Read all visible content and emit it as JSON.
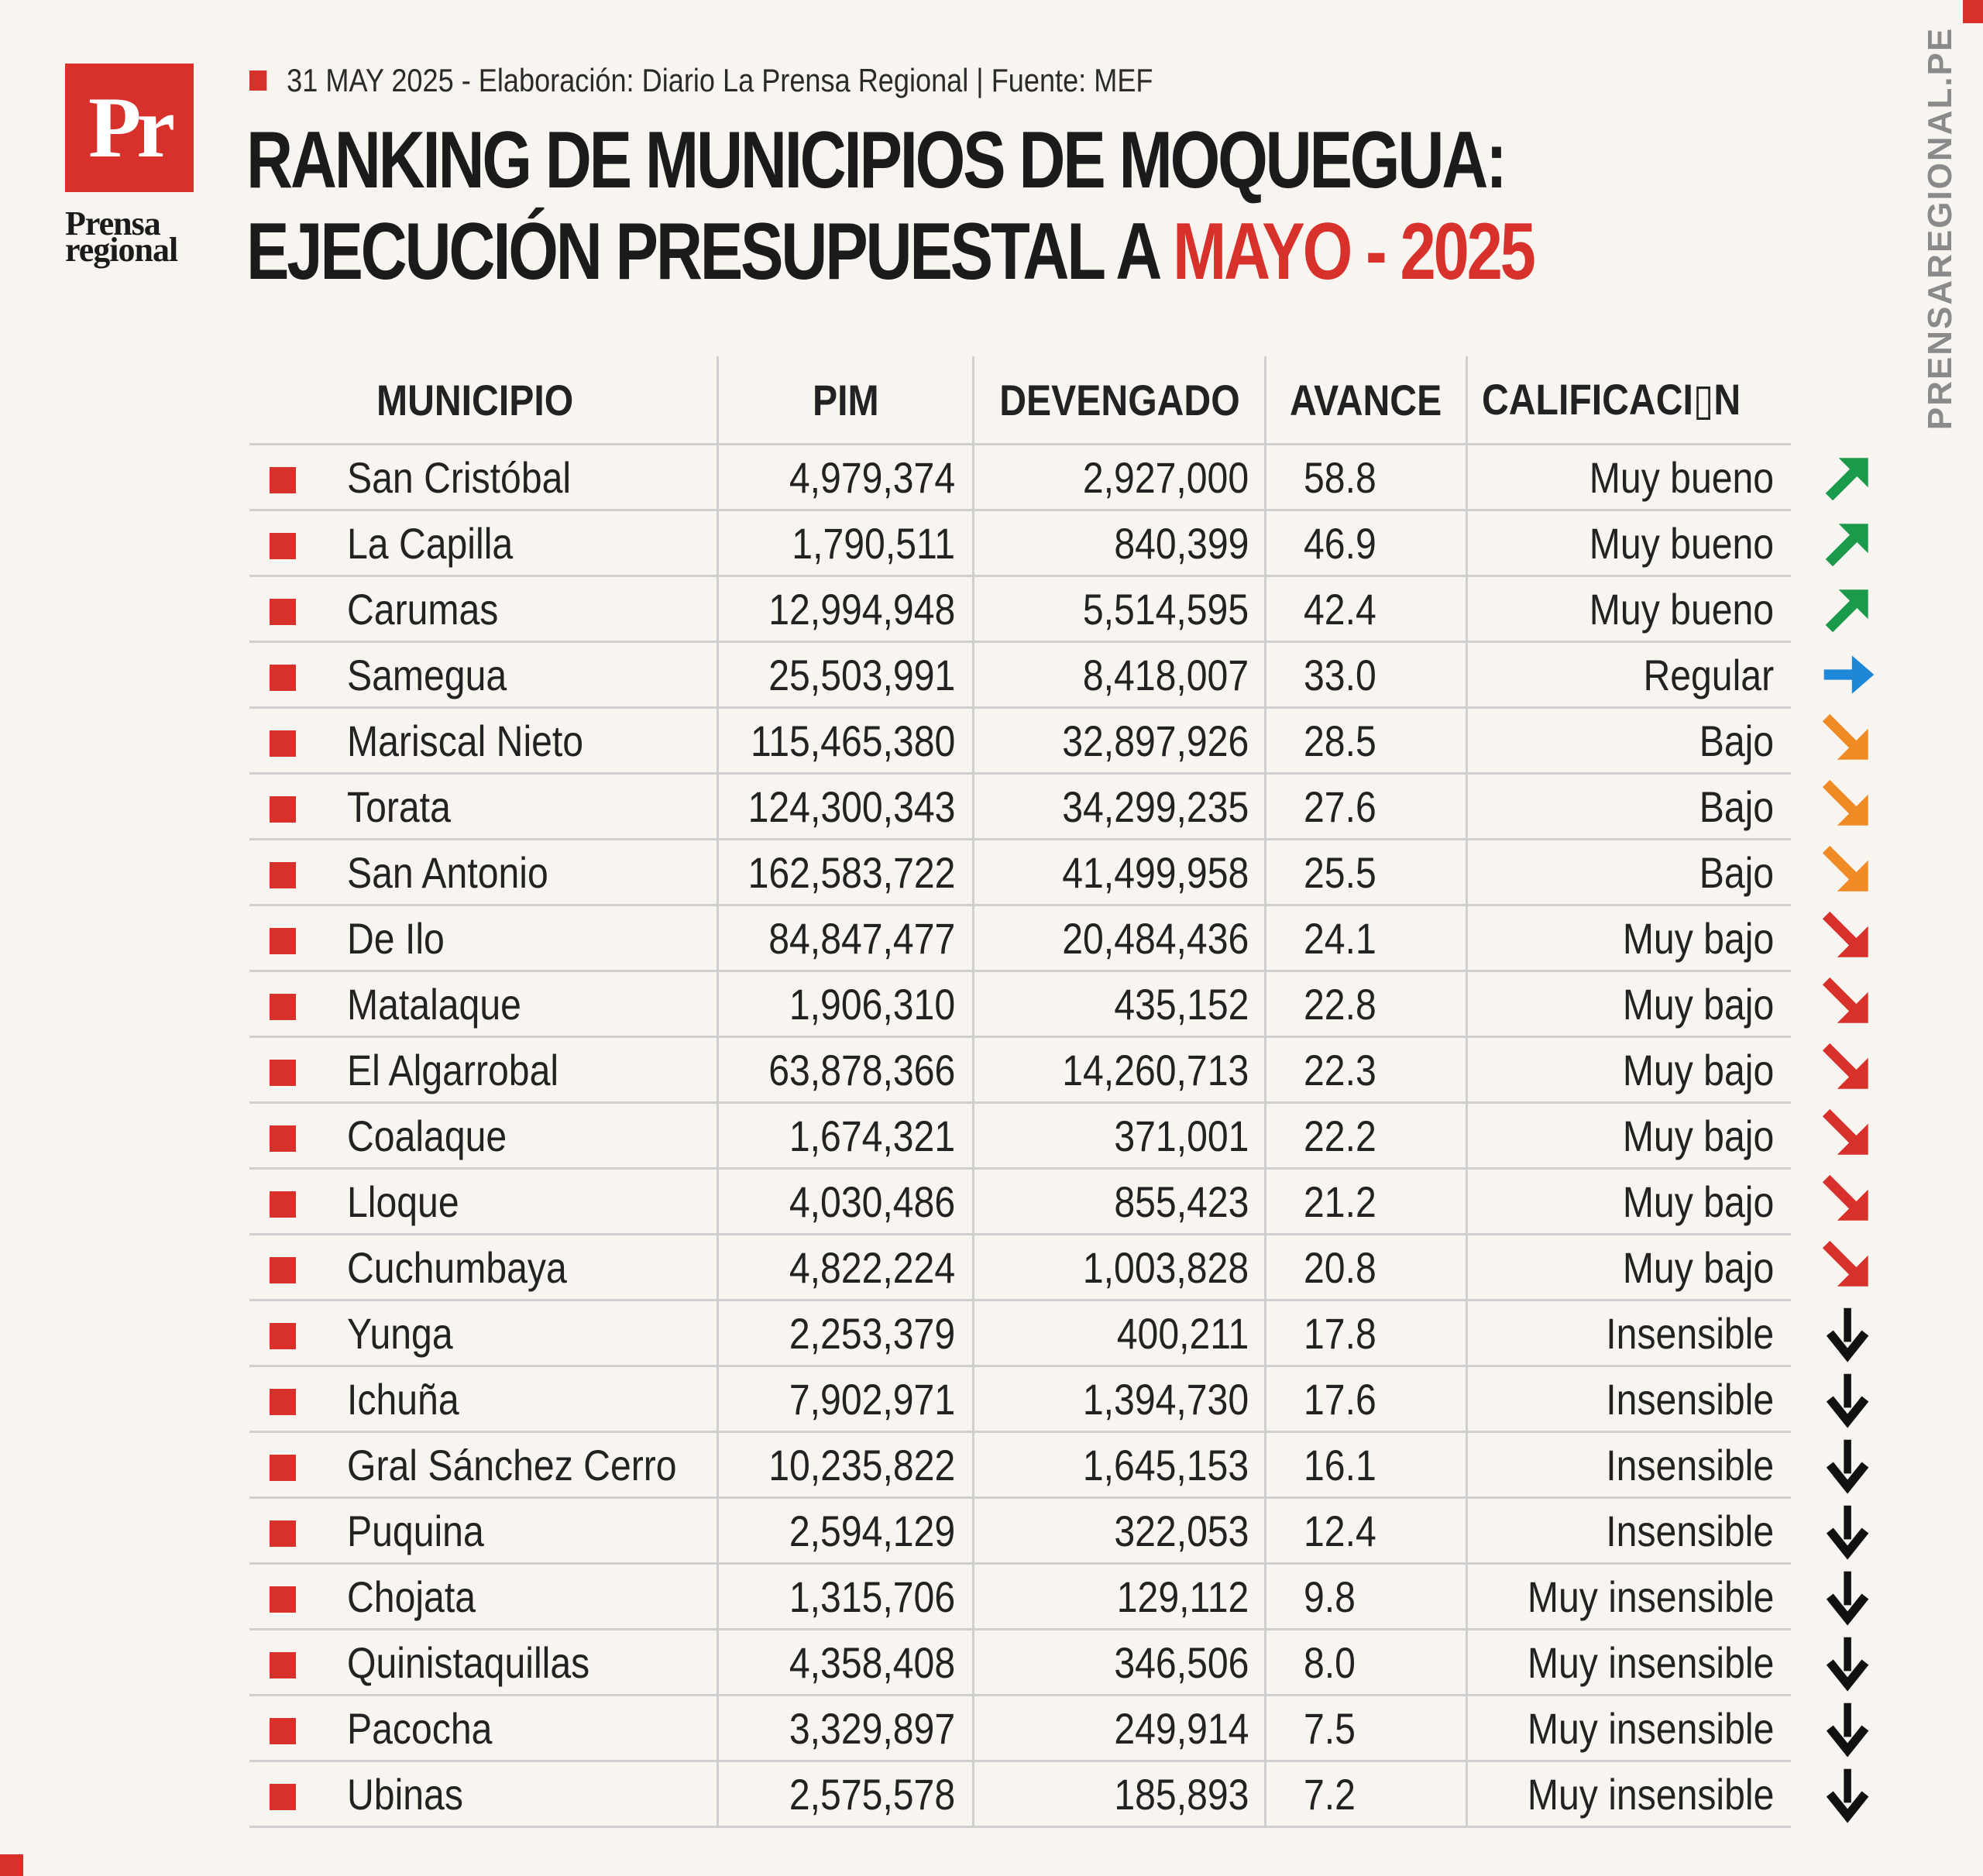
{
  "header": {
    "logo_text": "Pr",
    "brand_line1": "Prensa",
    "brand_line2": "regional",
    "meta": "31 MAY 2025 -  Elaboración: Diario La Prensa Regional | Fuente: MEF",
    "title_line1": "RANKING DE MUNICIPIOS DE MOQUEGUA:",
    "title_line2_a": "EJECUCIÓN PRESUPUESTAL A ",
    "title_line2_b": "MAYO - 2025",
    "side_text": "PRENSAREGIONAL.PE"
  },
  "colors": {
    "brand_red": "#d8302b",
    "arrow_green": "#1a9a4a",
    "arrow_blue": "#1e88d6",
    "arrow_orange": "#f08a24",
    "arrow_red": "#d8302b",
    "arrow_black": "#111111"
  },
  "table": {
    "headers": {
      "municipio": "MUNICIPIO",
      "pim": "PIM",
      "devengado": "DEVENGADO",
      "avance": "AVANCE",
      "calificacion": "CALIFICACI▯N"
    },
    "rows": [
      {
        "municipio": "San Cristóbal",
        "pim": "4,979,374",
        "devengado": "2,927,000",
        "avance": "58.8",
        "calificacion": "Muy bueno",
        "arrow": "arrow-up-right-icon",
        "arrow_color": "green"
      },
      {
        "municipio": "La Capilla",
        "pim": "1,790,511",
        "devengado": "840,399",
        "avance": "46.9",
        "calificacion": "Muy bueno",
        "arrow": "arrow-up-right-icon",
        "arrow_color": "green"
      },
      {
        "municipio": "Carumas",
        "pim": "12,994,948",
        "devengado": "5,514,595",
        "avance": "42.4",
        "calificacion": "Muy bueno",
        "arrow": "arrow-up-right-icon",
        "arrow_color": "green"
      },
      {
        "municipio": "Samegua",
        "pim": "25,503,991",
        "devengado": "8,418,007",
        "avance": "33.0",
        "calificacion": "Regular",
        "arrow": "arrow-right-icon",
        "arrow_color": "blue"
      },
      {
        "municipio": "Mariscal Nieto",
        "pim": "115,465,380",
        "devengado": "32,897,926",
        "avance": "28.5",
        "calificacion": "Bajo",
        "arrow": "arrow-down-right-icon",
        "arrow_color": "orange"
      },
      {
        "municipio": "Torata",
        "pim": "124,300,343",
        "devengado": "34,299,235",
        "avance": "27.6",
        "calificacion": "Bajo",
        "arrow": "arrow-down-right-icon",
        "arrow_color": "orange"
      },
      {
        "municipio": "San Antonio",
        "pim": "162,583,722",
        "devengado": "41,499,958",
        "avance": "25.5",
        "calificacion": "Bajo",
        "arrow": "arrow-down-right-icon",
        "arrow_color": "orange"
      },
      {
        "municipio": "De Ilo",
        "pim": "84,847,477",
        "devengado": "20,484,436",
        "avance": "24.1",
        "calificacion": "Muy bajo",
        "arrow": "arrow-down-right-icon",
        "arrow_color": "red"
      },
      {
        "municipio": "Matalaque",
        "pim": "1,906,310",
        "devengado": "435,152",
        "avance": "22.8",
        "calificacion": "Muy bajo",
        "arrow": "arrow-down-right-icon",
        "arrow_color": "red"
      },
      {
        "municipio": "El Algarrobal",
        "pim": "63,878,366",
        "devengado": "14,260,713",
        "avance": "22.3",
        "calificacion": "Muy bajo",
        "arrow": "arrow-down-right-icon",
        "arrow_color": "red"
      },
      {
        "municipio": "Coalaque",
        "pim": "1,674,321",
        "devengado": "371,001",
        "avance": "22.2",
        "calificacion": "Muy bajo",
        "arrow": "arrow-down-right-icon",
        "arrow_color": "red"
      },
      {
        "municipio": "Lloque",
        "pim": "4,030,486",
        "devengado": "855,423",
        "avance": "21.2",
        "calificacion": "Muy bajo",
        "arrow": "arrow-down-right-icon",
        "arrow_color": "red"
      },
      {
        "municipio": "Cuchumbaya",
        "pim": "4,822,224",
        "devengado": "1,003,828",
        "avance": "20.8",
        "calificacion": "Muy bajo",
        "arrow": "arrow-down-right-icon",
        "arrow_color": "red"
      },
      {
        "municipio": "Yunga",
        "pim": "2,253,379",
        "devengado": "400,211",
        "avance": "17.8",
        "calificacion": "Insensible",
        "arrow": "arrow-down-icon",
        "arrow_color": "black"
      },
      {
        "municipio": "Ichuña",
        "pim": "7,902,971",
        "devengado": "1,394,730",
        "avance": "17.6",
        "calificacion": "Insensible",
        "arrow": "arrow-down-icon",
        "arrow_color": "black"
      },
      {
        "municipio": "Gral Sánchez Cerro",
        "pim": "10,235,822",
        "devengado": "1,645,153",
        "avance": "16.1",
        "calificacion": "Insensible",
        "arrow": "arrow-down-icon",
        "arrow_color": "black"
      },
      {
        "municipio": "Puquina",
        "pim": "2,594,129",
        "devengado": "322,053",
        "avance": "12.4",
        "calificacion": "Insensible",
        "arrow": "arrow-down-icon",
        "arrow_color": "black"
      },
      {
        "municipio": "Chojata",
        "pim": "1,315,706",
        "devengado": "129,112",
        "avance": "9.8",
        "calificacion": "Muy insensible",
        "arrow": "arrow-down-icon",
        "arrow_color": "black"
      },
      {
        "municipio": "Quinistaquillas",
        "pim": "4,358,408",
        "devengado": "346,506",
        "avance": "8.0",
        "calificacion": "Muy insensible",
        "arrow": "arrow-down-icon",
        "arrow_color": "black"
      },
      {
        "municipio": "Pacocha",
        "pim": "3,329,897",
        "devengado": "249,914",
        "avance": "7.5",
        "calificacion": "Muy insensible",
        "arrow": "arrow-down-icon",
        "arrow_color": "black"
      },
      {
        "municipio": "Ubinas",
        "pim": "2,575,578",
        "devengado": "185,893",
        "avance": "7.2",
        "calificacion": "Muy insensible",
        "arrow": "arrow-down-icon",
        "arrow_color": "black"
      }
    ]
  }
}
